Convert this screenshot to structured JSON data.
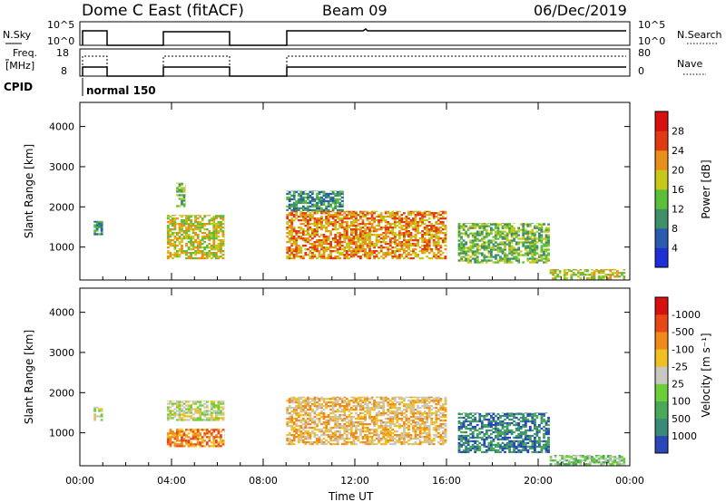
{
  "header": {
    "station": "Dome C East (fitACF)",
    "beam": "Beam 09",
    "date": "06/Dec/2019"
  },
  "top_panels": {
    "nsky_label": "N.Sky",
    "nsky_ticks": [
      "10^5",
      "10^0"
    ],
    "nsearch_label": "N.Search",
    "nsearch_ticks": [
      "10^5",
      "10^0"
    ],
    "freq_label_lines": [
      "Freq.",
      "[MHz]"
    ],
    "freq_ticks": [
      "18",
      "8"
    ],
    "nave_label": "Nave",
    "nave_ticks": [
      "80",
      "0"
    ],
    "cpid_label": "CPID",
    "cpid_value": "normal 150"
  },
  "chart_data": [
    {
      "type": "heatmap",
      "title": "Power",
      "ylabel": "Slant Range [km]",
      "xlabel": "",
      "x_ticks": [
        "00:00",
        "04:00",
        "08:00",
        "12:00",
        "16:00",
        "20:00",
        "00:00"
      ],
      "x_range_hours": [
        0,
        24
      ],
      "ylim": [
        180,
        4600
      ],
      "y_ticks": [
        1000,
        2000,
        3000,
        4000
      ],
      "colorbar": {
        "label": "Power [dB]",
        "ticks": [
          "4",
          "8",
          "12",
          "16",
          "20",
          "24",
          "28"
        ],
        "colors": [
          "#1f2fd8",
          "#2a5bb0",
          "#3f8f6a",
          "#5bbf3a",
          "#c8c81a",
          "#e8901a",
          "#e03a12",
          "#d81010"
        ]
      },
      "echo_regions": [
        {
          "t0": 0.6,
          "t1": 1.0,
          "r0": 1300,
          "r1": 1650,
          "level": 2
        },
        {
          "t0": 3.8,
          "t1": 6.3,
          "r0": 700,
          "r1": 1800,
          "level": 4
        },
        {
          "t0": 4.2,
          "t1": 4.6,
          "r0": 2000,
          "r1": 2600,
          "level": 3
        },
        {
          "t0": 9.0,
          "t1": 16.0,
          "r0": 700,
          "r1": 1900,
          "level": 5
        },
        {
          "t0": 9.0,
          "t1": 11.5,
          "r0": 1900,
          "r1": 2400,
          "level": 2
        },
        {
          "t0": 16.5,
          "t1": 20.5,
          "r0": 600,
          "r1": 1600,
          "level": 3
        },
        {
          "t0": 20.5,
          "t1": 23.8,
          "r0": 200,
          "r1": 450,
          "level": 4
        }
      ]
    },
    {
      "type": "heatmap",
      "title": "Velocity",
      "ylabel": "Slant Range [km]",
      "xlabel": "Time UT",
      "x_ticks": [
        "00:00",
        "04:00",
        "08:00",
        "12:00",
        "16:00",
        "20:00",
        "00:00"
      ],
      "x_range_hours": [
        0,
        24
      ],
      "ylim": [
        180,
        4600
      ],
      "y_ticks": [
        1000,
        2000,
        3000,
        4000
      ],
      "colorbar": {
        "label": "Velocity [m s⁻¹]",
        "ticks": [
          "1000",
          "500",
          "100",
          "25",
          "-25",
          "-100",
          "-500",
          "-1000"
        ],
        "colors": [
          "#2a46b8",
          "#3a8a78",
          "#4aa85a",
          "#6ccf3a",
          "#c8c8c0",
          "#f0c020",
          "#f08a18",
          "#e84818",
          "#d81010"
        ]
      },
      "echo_regions": [
        {
          "t0": 0.6,
          "t1": 1.0,
          "r0": 1300,
          "r1": 1650,
          "level": 4
        },
        {
          "t0": 3.8,
          "t1": 6.3,
          "r0": 1300,
          "r1": 1800,
          "level": 4
        },
        {
          "t0": 3.8,
          "t1": 6.3,
          "r0": 650,
          "r1": 1100,
          "level": 6
        },
        {
          "t0": 9.0,
          "t1": 16.0,
          "r0": 700,
          "r1": 1900,
          "level": 5
        },
        {
          "t0": 16.5,
          "t1": 20.5,
          "r0": 500,
          "r1": 1500,
          "level": 1
        },
        {
          "t0": 20.5,
          "t1": 23.8,
          "r0": 200,
          "r1": 450,
          "level": 3
        }
      ]
    }
  ]
}
